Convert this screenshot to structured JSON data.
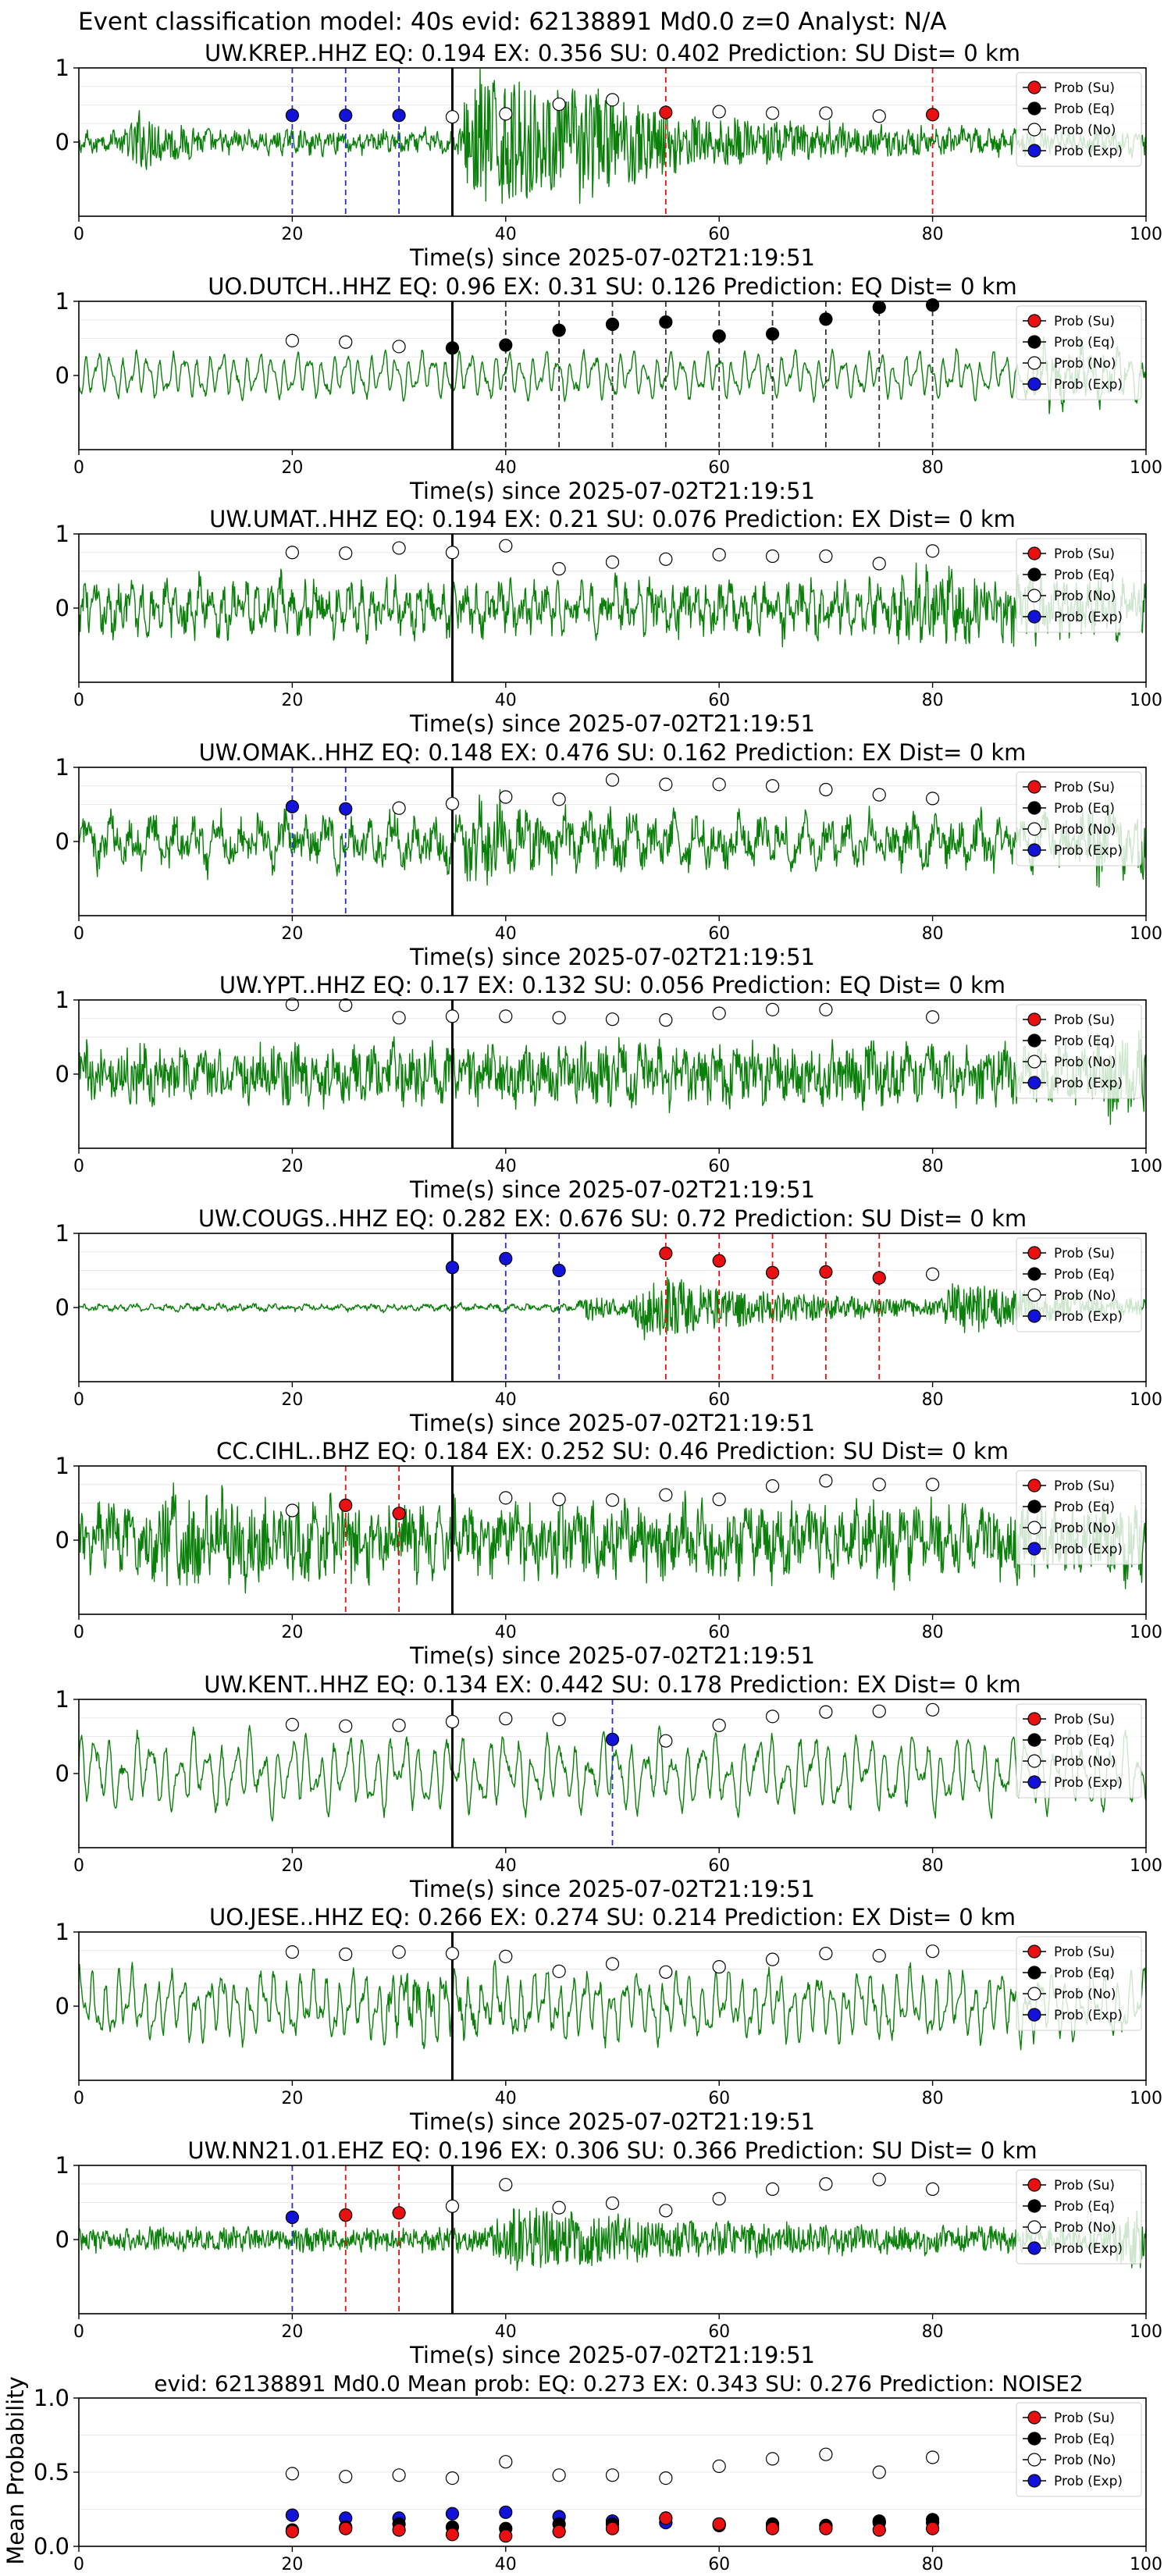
{
  "figure": {
    "suptitle": "Event classification model: 40s evid: 62138891 Md0.0 z=0 Analyst: N/A",
    "xlabel": "Time(s) since 2025-07-02T21:19:51",
    "legend_labels": [
      "Prob (Su)",
      "Prob (Eq)",
      "Prob (No)",
      "Prob (Exp)"
    ],
    "colors": {
      "su": "#e81010",
      "eq": "#000000",
      "no": "#ffffff",
      "exp": "#1212d8",
      "trace": "#0a800a",
      "onset": "#000000"
    }
  },
  "chart_data": [
    {
      "type": "line",
      "title": "UW.KREP..HHZ   EQ: 0.194   EX: 0.356   SU: 0.402   Prediction: SU    Dist= 0 km",
      "xlim": [
        0,
        100
      ],
      "ylim": [
        -1,
        1
      ],
      "yticks": [
        "1",
        "0"
      ],
      "xticks": [
        "0",
        "20",
        "40",
        "60",
        "80",
        "100"
      ],
      "onset_x": 35,
      "points": [
        {
          "x": 20,
          "p": 0.36,
          "c": "exp"
        },
        {
          "x": 25,
          "p": 0.36,
          "c": "exp"
        },
        {
          "x": 30,
          "p": 0.36,
          "c": "exp"
        },
        {
          "x": 35,
          "p": 0.34,
          "c": "no"
        },
        {
          "x": 40,
          "p": 0.38,
          "c": "no"
        },
        {
          "x": 45,
          "p": 0.51,
          "c": "no"
        },
        {
          "x": 50,
          "p": 0.57,
          "c": "no"
        },
        {
          "x": 55,
          "p": 0.4,
          "c": "su"
        },
        {
          "x": 60,
          "p": 0.41,
          "c": "no"
        },
        {
          "x": 65,
          "p": 0.39,
          "c": "no"
        },
        {
          "x": 70,
          "p": 0.39,
          "c": "no"
        },
        {
          "x": 75,
          "p": 0.35,
          "c": "no"
        },
        {
          "x": 80,
          "p": 0.37,
          "c": "su"
        }
      ]
    },
    {
      "type": "line",
      "title": "UO.DUTCH..HHZ   EQ: 0.96   EX: 0.31   SU: 0.126   Prediction: EQ    Dist= 0 km",
      "xlim": [
        0,
        100
      ],
      "ylim": [
        -1,
        1
      ],
      "yticks": [
        "1",
        "0"
      ],
      "xticks": [
        "0",
        "20",
        "40",
        "60",
        "80",
        "100"
      ],
      "onset_x": 35,
      "points": [
        {
          "x": 20,
          "p": 0.47,
          "c": "no"
        },
        {
          "x": 25,
          "p": 0.45,
          "c": "no"
        },
        {
          "x": 30,
          "p": 0.39,
          "c": "no"
        },
        {
          "x": 35,
          "p": 0.37,
          "c": "eq"
        },
        {
          "x": 40,
          "p": 0.41,
          "c": "eq"
        },
        {
          "x": 45,
          "p": 0.61,
          "c": "eq"
        },
        {
          "x": 50,
          "p": 0.69,
          "c": "eq"
        },
        {
          "x": 55,
          "p": 0.72,
          "c": "eq"
        },
        {
          "x": 60,
          "p": 0.53,
          "c": "eq"
        },
        {
          "x": 65,
          "p": 0.56,
          "c": "eq"
        },
        {
          "x": 70,
          "p": 0.76,
          "c": "eq"
        },
        {
          "x": 75,
          "p": 0.92,
          "c": "eq"
        },
        {
          "x": 80,
          "p": 0.95,
          "c": "eq"
        }
      ]
    },
    {
      "type": "line",
      "title": "UW.UMAT..HHZ   EQ: 0.194   EX: 0.21   SU: 0.076   Prediction: EX    Dist= 0 km",
      "xlim": [
        0,
        100
      ],
      "ylim": [
        -1,
        1
      ],
      "yticks": [
        "1",
        "0"
      ],
      "xticks": [
        "0",
        "20",
        "40",
        "60",
        "80",
        "100"
      ],
      "onset_x": 35,
      "points": [
        {
          "x": 20,
          "p": 0.75,
          "c": "no"
        },
        {
          "x": 25,
          "p": 0.74,
          "c": "no"
        },
        {
          "x": 30,
          "p": 0.81,
          "c": "no"
        },
        {
          "x": 35,
          "p": 0.75,
          "c": "no"
        },
        {
          "x": 40,
          "p": 0.84,
          "c": "no"
        },
        {
          "x": 45,
          "p": 0.53,
          "c": "no"
        },
        {
          "x": 50,
          "p": 0.62,
          "c": "no"
        },
        {
          "x": 55,
          "p": 0.66,
          "c": "no"
        },
        {
          "x": 60,
          "p": 0.72,
          "c": "no"
        },
        {
          "x": 65,
          "p": 0.7,
          "c": "no"
        },
        {
          "x": 70,
          "p": 0.7,
          "c": "no"
        },
        {
          "x": 75,
          "p": 0.6,
          "c": "no"
        },
        {
          "x": 80,
          "p": 0.77,
          "c": "no"
        }
      ]
    },
    {
      "type": "line",
      "title": "UW.OMAK..HHZ   EQ: 0.148   EX: 0.476   SU: 0.162   Prediction: EX    Dist= 0 km",
      "xlim": [
        0,
        100
      ],
      "ylim": [
        -1,
        1
      ],
      "yticks": [
        "1",
        "0"
      ],
      "xticks": [
        "0",
        "20",
        "40",
        "60",
        "80",
        "100"
      ],
      "onset_x": 35,
      "points": [
        {
          "x": 20,
          "p": 0.47,
          "c": "exp"
        },
        {
          "x": 25,
          "p": 0.44,
          "c": "exp"
        },
        {
          "x": 30,
          "p": 0.45,
          "c": "no"
        },
        {
          "x": 35,
          "p": 0.51,
          "c": "no"
        },
        {
          "x": 40,
          "p": 0.6,
          "c": "no"
        },
        {
          "x": 45,
          "p": 0.57,
          "c": "no"
        },
        {
          "x": 50,
          "p": 0.83,
          "c": "no"
        },
        {
          "x": 55,
          "p": 0.77,
          "c": "no"
        },
        {
          "x": 60,
          "p": 0.77,
          "c": "no"
        },
        {
          "x": 65,
          "p": 0.75,
          "c": "no"
        },
        {
          "x": 70,
          "p": 0.7,
          "c": "no"
        },
        {
          "x": 75,
          "p": 0.63,
          "c": "no"
        },
        {
          "x": 80,
          "p": 0.58,
          "c": "no"
        }
      ]
    },
    {
      "type": "line",
      "title": "UW.YPT..HHZ   EQ: 0.17   EX: 0.132   SU: 0.056   Prediction: EQ    Dist= 0 km",
      "xlim": [
        0,
        100
      ],
      "ylim": [
        -1,
        1
      ],
      "yticks": [
        "1",
        "0"
      ],
      "xticks": [
        "0",
        "20",
        "40",
        "60",
        "80",
        "100"
      ],
      "onset_x": 35,
      "points": [
        {
          "x": 20,
          "p": 0.94,
          "c": "no"
        },
        {
          "x": 25,
          "p": 0.93,
          "c": "no"
        },
        {
          "x": 30,
          "p": 0.76,
          "c": "no"
        },
        {
          "x": 35,
          "p": 0.78,
          "c": "no"
        },
        {
          "x": 40,
          "p": 0.78,
          "c": "no"
        },
        {
          "x": 45,
          "p": 0.76,
          "c": "no"
        },
        {
          "x": 50,
          "p": 0.74,
          "c": "no"
        },
        {
          "x": 55,
          "p": 0.73,
          "c": "no"
        },
        {
          "x": 60,
          "p": 0.82,
          "c": "no"
        },
        {
          "x": 65,
          "p": 0.87,
          "c": "no"
        },
        {
          "x": 70,
          "p": 0.87,
          "c": "no"
        },
        {
          "x": 80,
          "p": 0.77,
          "c": "no"
        }
      ]
    },
    {
      "type": "line",
      "title": "UW.COUGS..HHZ   EQ: 0.282   EX: 0.676   SU: 0.72   Prediction: SU    Dist= 0 km",
      "xlim": [
        0,
        100
      ],
      "ylim": [
        -1,
        1
      ],
      "yticks": [
        "1",
        "0"
      ],
      "xticks": [
        "0",
        "20",
        "40",
        "60",
        "80",
        "100"
      ],
      "onset_x": 35,
      "points": [
        {
          "x": 35,
          "p": 0.54,
          "c": "exp"
        },
        {
          "x": 40,
          "p": 0.66,
          "c": "exp"
        },
        {
          "x": 45,
          "p": 0.5,
          "c": "exp"
        },
        {
          "x": 55,
          "p": 0.73,
          "c": "su"
        },
        {
          "x": 60,
          "p": 0.63,
          "c": "su"
        },
        {
          "x": 65,
          "p": 0.47,
          "c": "su"
        },
        {
          "x": 70,
          "p": 0.48,
          "c": "su"
        },
        {
          "x": 75,
          "p": 0.4,
          "c": "su"
        },
        {
          "x": 80,
          "p": 0.45,
          "c": "no"
        }
      ]
    },
    {
      "type": "line",
      "title": "CC.CIHL..BHZ   EQ: 0.184   EX: 0.252   SU: 0.46   Prediction: SU    Dist= 0 km",
      "xlim": [
        0,
        100
      ],
      "ylim": [
        -1,
        1
      ],
      "yticks": [
        "1",
        "0"
      ],
      "xticks": [
        "0",
        "20",
        "40",
        "60",
        "80",
        "100"
      ],
      "onset_x": 35,
      "points": [
        {
          "x": 20,
          "p": 0.4,
          "c": "no"
        },
        {
          "x": 25,
          "p": 0.47,
          "c": "su"
        },
        {
          "x": 30,
          "p": 0.36,
          "c": "su"
        },
        {
          "x": 40,
          "p": 0.57,
          "c": "no"
        },
        {
          "x": 45,
          "p": 0.55,
          "c": "no"
        },
        {
          "x": 50,
          "p": 0.54,
          "c": "no"
        },
        {
          "x": 55,
          "p": 0.61,
          "c": "no"
        },
        {
          "x": 60,
          "p": 0.55,
          "c": "no"
        },
        {
          "x": 65,
          "p": 0.73,
          "c": "no"
        },
        {
          "x": 70,
          "p": 0.8,
          "c": "no"
        },
        {
          "x": 75,
          "p": 0.75,
          "c": "no"
        },
        {
          "x": 80,
          "p": 0.75,
          "c": "no"
        }
      ]
    },
    {
      "type": "line",
      "title": "UW.KENT..HHZ   EQ: 0.134   EX: 0.442   SU: 0.178   Prediction: EX    Dist= 0 km",
      "xlim": [
        0,
        100
      ],
      "ylim": [
        -1,
        1
      ],
      "yticks": [
        "1",
        "0"
      ],
      "xticks": [
        "0",
        "20",
        "40",
        "60",
        "80",
        "100"
      ],
      "onset_x": 35,
      "points": [
        {
          "x": 20,
          "p": 0.66,
          "c": "no"
        },
        {
          "x": 25,
          "p": 0.64,
          "c": "no"
        },
        {
          "x": 30,
          "p": 0.65,
          "c": "no"
        },
        {
          "x": 35,
          "p": 0.7,
          "c": "no"
        },
        {
          "x": 40,
          "p": 0.74,
          "c": "no"
        },
        {
          "x": 45,
          "p": 0.73,
          "c": "no"
        },
        {
          "x": 50,
          "p": 0.46,
          "c": "exp"
        },
        {
          "x": 55,
          "p": 0.44,
          "c": "no"
        },
        {
          "x": 60,
          "p": 0.65,
          "c": "no"
        },
        {
          "x": 65,
          "p": 0.77,
          "c": "no"
        },
        {
          "x": 70,
          "p": 0.83,
          "c": "no"
        },
        {
          "x": 75,
          "p": 0.84,
          "c": "no"
        },
        {
          "x": 80,
          "p": 0.86,
          "c": "no"
        }
      ]
    },
    {
      "type": "line",
      "title": "UO.JESE..HHZ   EQ: 0.266   EX: 0.274   SU: 0.214   Prediction: EX    Dist= 0 km",
      "xlim": [
        0,
        100
      ],
      "ylim": [
        -1,
        1
      ],
      "yticks": [
        "1",
        "0"
      ],
      "xticks": [
        "0",
        "20",
        "40",
        "60",
        "80",
        "100"
      ],
      "onset_x": 35,
      "points": [
        {
          "x": 20,
          "p": 0.73,
          "c": "no"
        },
        {
          "x": 25,
          "p": 0.7,
          "c": "no"
        },
        {
          "x": 30,
          "p": 0.73,
          "c": "no"
        },
        {
          "x": 35,
          "p": 0.71,
          "c": "no"
        },
        {
          "x": 40,
          "p": 0.67,
          "c": "no"
        },
        {
          "x": 45,
          "p": 0.47,
          "c": "no"
        },
        {
          "x": 50,
          "p": 0.57,
          "c": "no"
        },
        {
          "x": 55,
          "p": 0.46,
          "c": "no"
        },
        {
          "x": 60,
          "p": 0.53,
          "c": "no"
        },
        {
          "x": 65,
          "p": 0.63,
          "c": "no"
        },
        {
          "x": 70,
          "p": 0.71,
          "c": "no"
        },
        {
          "x": 75,
          "p": 0.68,
          "c": "no"
        },
        {
          "x": 80,
          "p": 0.74,
          "c": "no"
        }
      ]
    },
    {
      "type": "line",
      "title": "UW.NN21.01.EHZ   EQ: 0.196   EX: 0.306   SU: 0.366   Prediction: SU    Dist= 0 km",
      "xlim": [
        0,
        100
      ],
      "ylim": [
        -1,
        1
      ],
      "yticks": [
        "1",
        "0"
      ],
      "xticks": [
        "0",
        "20",
        "40",
        "60",
        "80",
        "100"
      ],
      "onset_x": 35,
      "points": [
        {
          "x": 20,
          "p": 0.3,
          "c": "exp"
        },
        {
          "x": 25,
          "p": 0.33,
          "c": "su"
        },
        {
          "x": 30,
          "p": 0.36,
          "c": "su"
        },
        {
          "x": 35,
          "p": 0.45,
          "c": "no"
        },
        {
          "x": 40,
          "p": 0.74,
          "c": "no"
        },
        {
          "x": 45,
          "p": 0.43,
          "c": "no"
        },
        {
          "x": 50,
          "p": 0.49,
          "c": "no"
        },
        {
          "x": 55,
          "p": 0.39,
          "c": "no"
        },
        {
          "x": 60,
          "p": 0.55,
          "c": "no"
        },
        {
          "x": 65,
          "p": 0.68,
          "c": "no"
        },
        {
          "x": 70,
          "p": 0.75,
          "c": "no"
        },
        {
          "x": 75,
          "p": 0.81,
          "c": "no"
        },
        {
          "x": 80,
          "p": 0.68,
          "c": "no"
        }
      ]
    },
    {
      "type": "scatter",
      "title": "evid: 62138891  Md0.0   Mean prob:   EQ: 0.273   EX: 0.343   SU: 0.276   Prediction: NOISE2",
      "ylabel": "Mean Probability",
      "xlim": [
        0,
        100
      ],
      "ylim": [
        0,
        1
      ],
      "yticks": [
        "0.0",
        "0.5",
        "1.0"
      ],
      "xticks": [
        "0",
        "20",
        "40",
        "60",
        "80",
        "100"
      ],
      "x": [
        20,
        25,
        30,
        35,
        40,
        45,
        50,
        55,
        60,
        65,
        70,
        75,
        80
      ],
      "series": [
        {
          "name": "Prob (No)",
          "c": "no",
          "values": [
            0.49,
            0.47,
            0.48,
            0.46,
            0.57,
            0.48,
            0.48,
            0.46,
            0.54,
            0.59,
            0.62,
            0.5,
            0.6
          ]
        },
        {
          "name": "Prob (Exp)",
          "c": "exp",
          "values": [
            0.21,
            0.19,
            0.19,
            0.22,
            0.23,
            0.2,
            0.17,
            0.16,
            0.15,
            0.14,
            0.14,
            0.16,
            0.16
          ]
        },
        {
          "name": "Prob (Eq)",
          "c": "eq",
          "values": [
            0.11,
            0.13,
            0.15,
            0.13,
            0.12,
            0.15,
            0.15,
            0.19,
            0.14,
            0.15,
            0.14,
            0.17,
            0.18
          ]
        },
        {
          "name": "Prob (Su)",
          "c": "su",
          "values": [
            0.1,
            0.12,
            0.11,
            0.08,
            0.07,
            0.1,
            0.12,
            0.19,
            0.15,
            0.12,
            0.12,
            0.11,
            0.12
          ]
        }
      ]
    }
  ]
}
